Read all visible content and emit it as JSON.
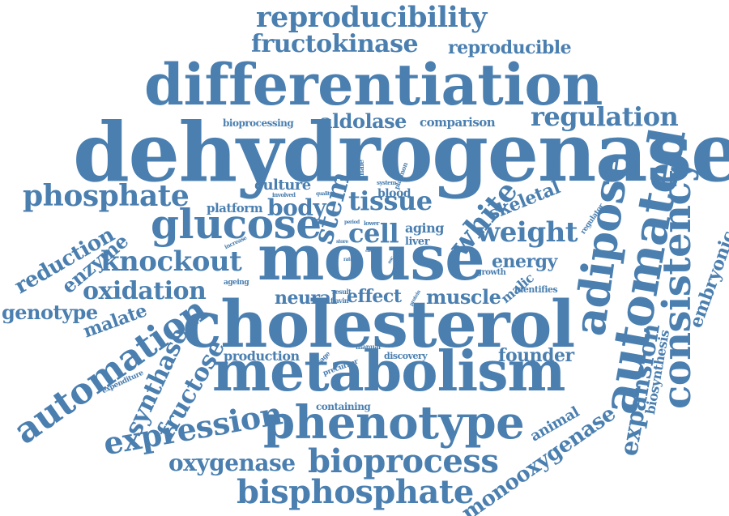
{
  "color": "#4a7fb0",
  "words": [
    "reproducibility",
    "fructokinase",
    "reproducible",
    "differentiation",
    "dehydrogenase",
    "bioprocessing",
    "aldolase",
    "comparison",
    "regulation",
    "phosphate",
    "culture",
    "male",
    "system",
    "plasmon",
    "stem",
    "tissue",
    "blood",
    "white",
    "skeletal",
    "adipose",
    "automated",
    "consistency",
    "embryonic",
    "glucose",
    "platform",
    "body",
    "involved",
    "quality",
    "regulator",
    "weight",
    "aging",
    "liver",
    "period",
    "lower",
    "cell",
    "reduction",
    "enzyme",
    "increase",
    "store",
    "mouse",
    "knockout",
    "energy",
    "rate",
    "case",
    "esc",
    "growth",
    "malic",
    "identifies",
    "oxidation",
    "ageing",
    "neural",
    "result",
    "flavin",
    "protein",
    "effect",
    "muscle",
    "genotype",
    "malate",
    "cholesterol",
    "expansion",
    "biosynthesis",
    "automation",
    "manual",
    "synthase",
    "passage",
    "production",
    "precursor",
    "discovery",
    "founder",
    "expenditure",
    "metabolism",
    "fructose",
    "containing",
    "animal",
    "expression",
    "phenotype",
    "monooxygenase",
    "oxygenase",
    "bioprocess",
    "bisphosphate"
  ]
}
